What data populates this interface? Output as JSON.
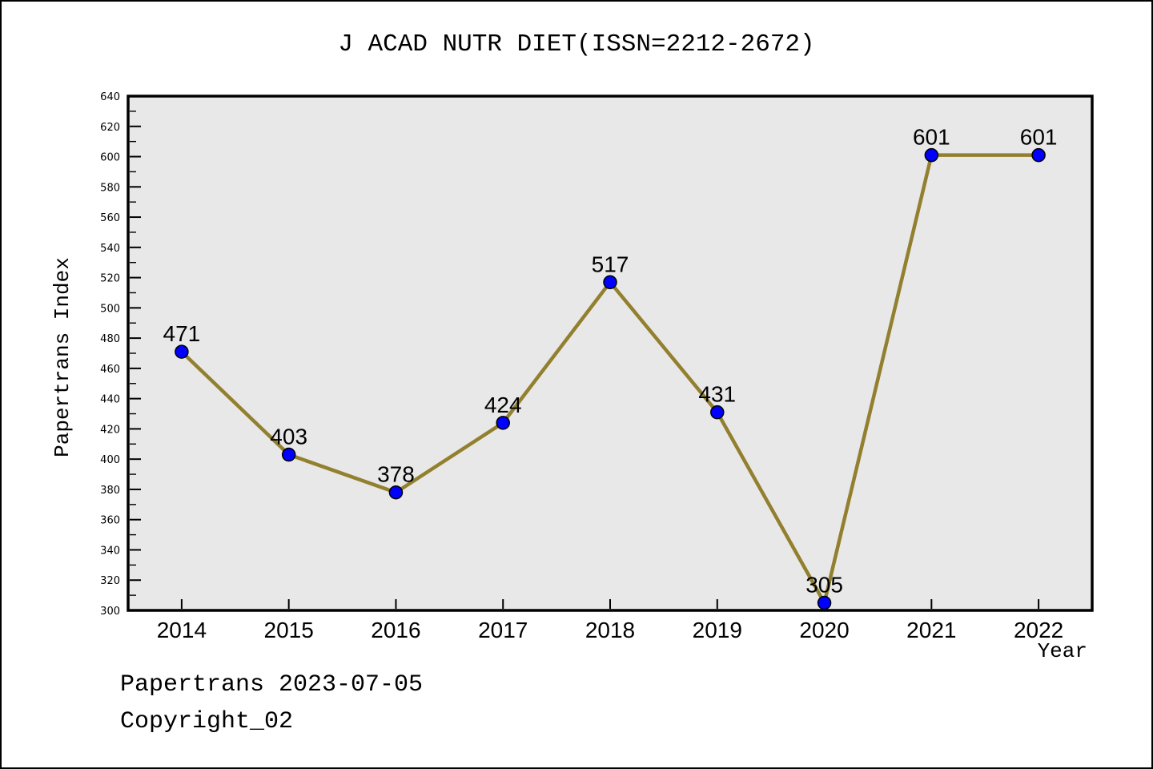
{
  "page": {
    "footer_line1": "Papertrans 2023-07-05",
    "footer_line2": "Copyright_02"
  },
  "chart_data": {
    "type": "line",
    "title": "J ACAD NUTR DIET(ISSN=2212-2672)",
    "xlabel": "Year",
    "ylabel": "Papertrans Index",
    "x": [
      "2014",
      "2015",
      "2016",
      "2017",
      "2018",
      "2019",
      "2020",
      "2021",
      "2022"
    ],
    "series": [
      {
        "name": "Papertrans Index",
        "values": [
          471,
          403,
          378,
          424,
          517,
          431,
          305,
          601,
          601
        ]
      }
    ],
    "point_labels": [
      "471",
      "403",
      "378",
      "424",
      "517",
      "431",
      "305",
      "601",
      "601"
    ],
    "ylim": [
      300,
      640
    ],
    "y_tick_major_step": 20,
    "y_tick_minor_step": 10,
    "grid": false,
    "legend": "none",
    "colors": {
      "line": "#92802f",
      "marker_fill": "#0000ff",
      "marker_edge": "#000000",
      "plot_background": "#e8e8e8",
      "axis_frame": "#000000",
      "text": "#000000"
    }
  }
}
